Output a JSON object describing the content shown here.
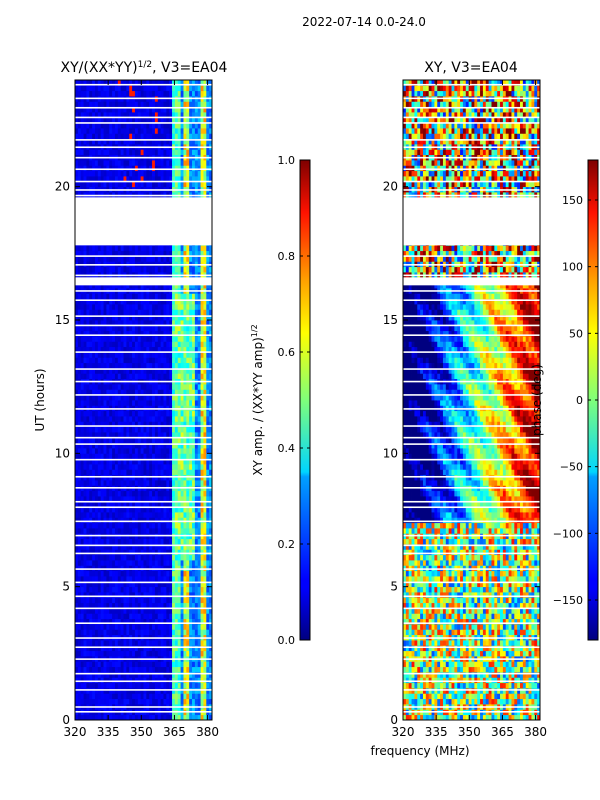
{
  "figure": {
    "suptitle": "2022-07-14 0.0-24.0",
    "xlabel": "frequency (MHz)"
  },
  "chart_data": [
    {
      "type": "heatmap",
      "title": "XY/(XX*YY)",
      "title_sup": "1/2",
      "title_suffix": ", V3=EA04",
      "xlabel": "",
      "ylabel": "UT (hours)",
      "xlim": [
        320,
        382
      ],
      "ylim": [
        0,
        24
      ],
      "xticks": [
        "320",
        "335",
        "350",
        "365",
        "380"
      ],
      "xtick_values": [
        320,
        335,
        350,
        365,
        380
      ],
      "yticks": [
        "0",
        "5",
        "10",
        "15",
        "20"
      ],
      "ytick_values": [
        0,
        5,
        10,
        15,
        20
      ],
      "colorbar": {
        "label": "XY amp. / (XX*YY amp)",
        "label_sup": "1/2",
        "range": [
          0.0,
          1.0
        ],
        "ticks": [
          "0.0",
          "0.2",
          "0.4",
          "0.6",
          "0.8",
          "1.0"
        ],
        "tick_values": [
          0.0,
          0.2,
          0.4,
          0.6,
          0.8,
          1.0
        ],
        "colormap": "jet"
      },
      "gap_hours": [
        [
          19.6,
          17.8
        ],
        [
          16.6,
          16.3
        ]
      ],
      "description_values": {
        "background_amp": 0.1,
        "band_364_382_amp": 0.45,
        "rfi_columns_amp": 0.6
      }
    },
    {
      "type": "heatmap",
      "title": "XY, V3=EA04",
      "xlabel": "",
      "ylabel": "phase (deg)",
      "xlim": [
        320,
        382
      ],
      "ylim": [
        0,
        24
      ],
      "xticks": [
        "320",
        "335",
        "350",
        "365",
        "380"
      ],
      "xtick_values": [
        320,
        335,
        350,
        365,
        380
      ],
      "yticks": [
        "0",
        "5",
        "10",
        "15",
        "20"
      ],
      "ytick_values": [
        0,
        5,
        10,
        15,
        20
      ],
      "colorbar": {
        "label": "phase (deg)",
        "range": [
          -180,
          180
        ],
        "ticks": [
          "150",
          "100",
          "50",
          "0",
          "−50",
          "−100",
          "−150"
        ],
        "tick_values": [
          150,
          100,
          50,
          0,
          -50,
          -100,
          -150
        ],
        "colormap": "jet"
      },
      "gap_hours": [
        [
          19.6,
          17.8
        ],
        [
          16.6,
          16.3
        ]
      ]
    }
  ],
  "colors": {
    "axis": "#000000",
    "background": "#ffffff",
    "gap": "#ffffff"
  }
}
